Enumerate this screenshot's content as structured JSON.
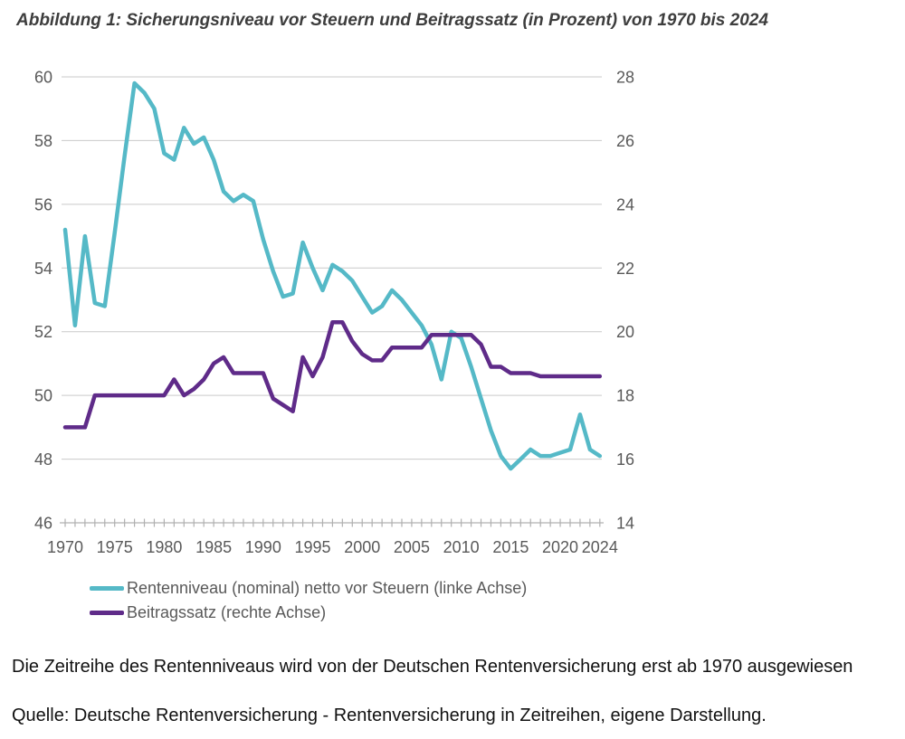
{
  "title": "Abbildung 1: Sicherungsniveau vor Steuern und Beitragssatz (in Prozent) von 1970 bis 2024",
  "chart_data": {
    "type": "line",
    "x": [
      1970,
      1971,
      1972,
      1973,
      1974,
      1975,
      1976,
      1977,
      1978,
      1979,
      1980,
      1981,
      1982,
      1983,
      1984,
      1985,
      1986,
      1987,
      1988,
      1989,
      1990,
      1991,
      1992,
      1993,
      1994,
      1995,
      1996,
      1997,
      1998,
      1999,
      2000,
      2001,
      2002,
      2003,
      2004,
      2005,
      2006,
      2007,
      2008,
      2009,
      2010,
      2011,
      2012,
      2013,
      2014,
      2015,
      2016,
      2017,
      2018,
      2019,
      2020,
      2021,
      2022,
      2023,
      2024
    ],
    "series": [
      {
        "name": "Rentenniveau (nominal) netto vor Steuern (linke Achse)",
        "axis": "left",
        "color": "#55b9c7",
        "values": [
          55.2,
          52.2,
          55.0,
          52.9,
          52.8,
          55.1,
          57.5,
          59.8,
          59.5,
          59.0,
          57.6,
          57.4,
          58.4,
          57.9,
          58.1,
          57.4,
          56.4,
          56.1,
          56.3,
          56.1,
          54.9,
          53.9,
          53.1,
          53.2,
          54.8,
          54.0,
          53.3,
          54.1,
          53.9,
          53.6,
          53.1,
          52.6,
          52.8,
          53.3,
          53.0,
          52.6,
          52.2,
          51.6,
          50.5,
          52.0,
          51.8,
          50.9,
          49.9,
          48.9,
          48.1,
          47.7,
          48.0,
          48.3,
          48.1,
          48.1,
          48.2,
          48.3,
          49.4,
          48.3,
          48.1
        ]
      },
      {
        "name": "Beitragssatz (rechte Achse)",
        "axis": "right",
        "color": "#5f2b89",
        "values": [
          17.0,
          17.0,
          17.0,
          18.0,
          18.0,
          18.0,
          18.0,
          18.0,
          18.0,
          18.0,
          18.0,
          18.5,
          18.0,
          18.2,
          18.5,
          19.0,
          19.2,
          18.7,
          18.7,
          18.7,
          18.7,
          17.9,
          17.7,
          17.5,
          19.2,
          18.6,
          19.2,
          20.3,
          20.3,
          19.7,
          19.3,
          19.1,
          19.1,
          19.5,
          19.5,
          19.5,
          19.5,
          19.9,
          19.9,
          19.9,
          19.9,
          19.9,
          19.6,
          18.9,
          18.9,
          18.7,
          18.7,
          18.7,
          18.6,
          18.6,
          18.6,
          18.6,
          18.6,
          18.6,
          18.6
        ]
      }
    ],
    "left_axis": {
      "min": 46,
      "max": 60,
      "ticks": [
        60,
        58,
        56,
        54,
        52,
        50,
        48,
        46
      ]
    },
    "right_axis": {
      "min": 14,
      "max": 28,
      "ticks": [
        28,
        26,
        24,
        22,
        20,
        18,
        16,
        14
      ]
    },
    "x_axis": {
      "labeled_ticks": [
        1970,
        1975,
        1980,
        1985,
        1990,
        1995,
        2000,
        2005,
        2010,
        2015,
        2020,
        2024
      ],
      "tick_every_year": true
    },
    "grid": true,
    "legend_position": "bottom-left",
    "title": "Abbildung 1: Sicherungsniveau vor Steuern und Beitragssatz (in Prozent) von 1970 bis 2024",
    "xlabel": "",
    "ylabel_left": "",
    "ylabel_right": ""
  },
  "colors": {
    "gridline": "#c9c9c9",
    "axis_line": "#b0b0b0",
    "axis_text": "#595959",
    "title_text": "#3d3d3d"
  },
  "notes": {
    "line1": "Die Zeitreihe des Rentenniveaus wird von der Deutschen Rentenversicherung erst ab 1970 ausgewiesen",
    "source": "Quelle: Deutsche Rentenversicherung - Rentenversicherung in Zeitreihen, eigene Darstellung."
  }
}
